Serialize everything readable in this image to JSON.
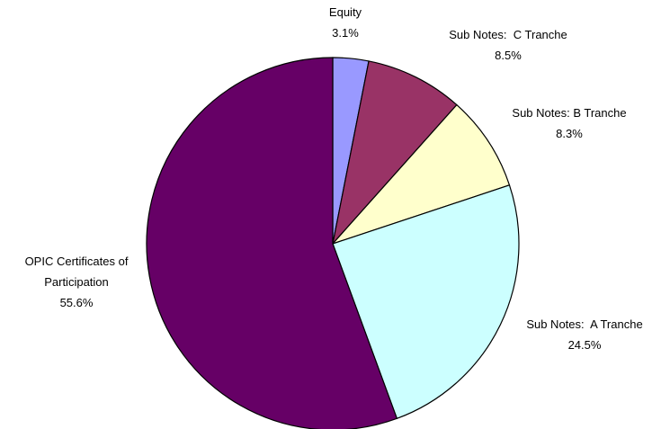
{
  "chart_data": {
    "type": "pie",
    "categories": [
      "Equity",
      "Sub Notes:  C Tranche",
      "Sub Notes: B Tranche",
      "Sub Notes:  A Tranche",
      "OPIC Certificates of Participation"
    ],
    "values": [
      3.1,
      8.5,
      8.3,
      24.5,
      55.6
    ],
    "value_labels": [
      "3.1%",
      "8.5%",
      "8.3%",
      "24.5%",
      "55.6%"
    ],
    "colors": [
      "#9999ff",
      "#993366",
      "#ffffcc",
      "#ccffff",
      "#660066"
    ]
  }
}
